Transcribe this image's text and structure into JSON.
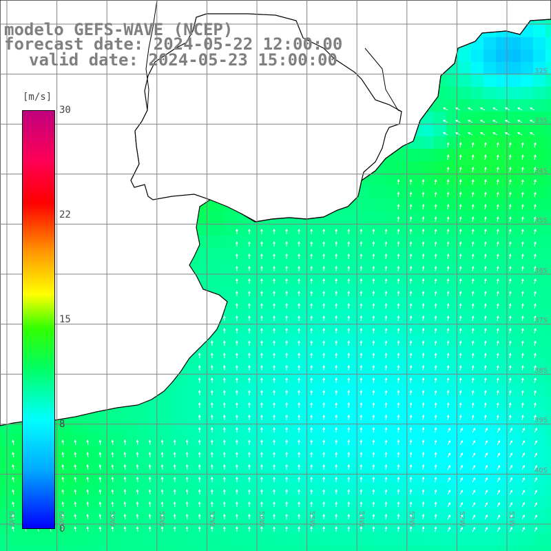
{
  "title": {
    "line1": "modelo GEFS-WAVE (NCEP)",
    "line2": "forecast date: 2024-05-22 12:00:00",
    "line3": "valid date: 2024-05-23 15:00:00"
  },
  "colorbar": {
    "unit": "[m/s]",
    "ticks": [
      "30",
      "22",
      "15",
      "8",
      "0"
    ],
    "tick_values": [
      30,
      22,
      15,
      8,
      0
    ],
    "range": [
      0,
      30
    ],
    "colors": [
      "#0000ff",
      "#00aaff",
      "#00ffff",
      "#00ff66",
      "#33ff00",
      "#ffff00",
      "#ff9900",
      "#ff0000",
      "#ff0055",
      "#c0007f"
    ]
  },
  "map": {
    "variable": "wind speed with direction arrows",
    "lon_labels": [
      "61W",
      "60W",
      "59W",
      "58W",
      "57W",
      "56W",
      "55W",
      "54W",
      "53W",
      "52W",
      "51W"
    ],
    "lat_labels": [
      "32S",
      "33S",
      "34S",
      "35S",
      "36S",
      "37S",
      "38S",
      "39S",
      "40S"
    ],
    "land_color": "#ffffff",
    "grid_color": "#808080",
    "arrow_color": "#ffffff"
  }
}
